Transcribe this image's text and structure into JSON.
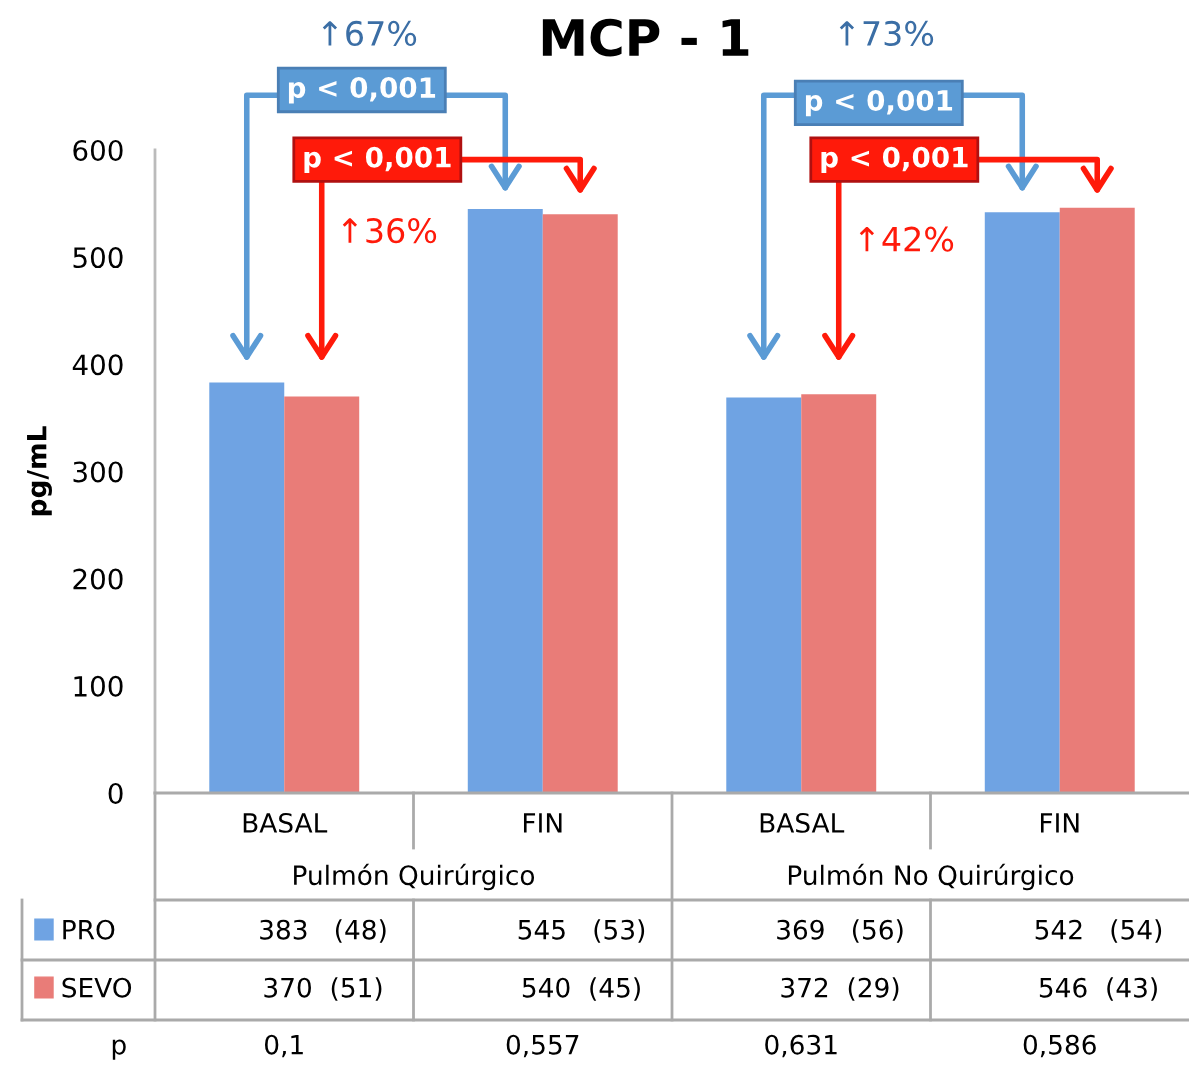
{
  "chart_data": {
    "type": "bar",
    "title": "MCP - 1",
    "ylabel": "pg/mL",
    "categories": [
      "BASAL",
      "FIN",
      "BASAL",
      "FIN"
    ],
    "series": [
      {
        "name": "PRO",
        "color": "#6fa3e3",
        "values": [
          383,
          545,
          369,
          542
        ],
        "value_labels": [
          "383   (48)",
          "545   (53)",
          "369   (56)",
          "542   (54)"
        ]
      },
      {
        "name": "SEVO",
        "color": "#e97c78",
        "values": [
          370,
          540,
          372,
          546
        ],
        "value_labels": [
          "370  (51)",
          "540  (45)",
          "372  (29)",
          "546  (43)"
        ]
      }
    ],
    "ylim": [
      0,
      600
    ],
    "yticks": [
      0,
      100,
      200,
      300,
      400,
      500,
      600
    ],
    "grid": false,
    "legend": "bottom left",
    "annotations": [
      "Pulmón Quirúrgico",
      "Pulmón No Quirúrgico",
      "p",
      "0,1",
      "0,557",
      "0,631",
      "0,586",
      "↑67%",
      "p < 0,001",
      "p < 0,001",
      "↑36%",
      "↑73%",
      "p < 0,001",
      "p < 0,001",
      "↑42%"
    ]
  }
}
